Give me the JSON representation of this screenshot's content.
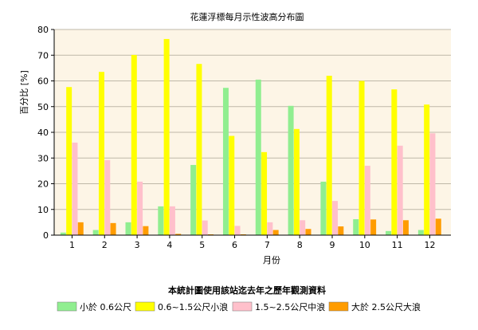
{
  "chart_data": {
    "type": "bar",
    "title": "花蓮浮標每月示性波高分布圖",
    "xlabel": "月份",
    "ylabel": "百分比 [%]",
    "ylim": [
      0,
      80
    ],
    "yticks": [
      0,
      10,
      20,
      30,
      40,
      50,
      60,
      70,
      80
    ],
    "categories": [
      "1",
      "2",
      "3",
      "4",
      "5",
      "6",
      "7",
      "8",
      "9",
      "10",
      "11",
      "12"
    ],
    "series": [
      {
        "name": "小於 0.6公尺",
        "color": "#90ee90",
        "values": [
          1.0,
          2.0,
          5.0,
          11.2,
          27.3,
          57.3,
          60.5,
          50.3,
          20.8,
          6.2,
          1.6,
          2.0
        ]
      },
      {
        "name": "0.6~1.5公尺小浪",
        "color": "#ffff00",
        "values": [
          57.6,
          63.5,
          70.1,
          76.3,
          66.6,
          38.6,
          32.3,
          41.3,
          62.0,
          60.0,
          56.7,
          50.8
        ]
      },
      {
        "name": "1.5~2.5公尺中浪",
        "color": "#ffc0cb",
        "values": [
          36.0,
          29.2,
          20.8,
          11.2,
          5.7,
          3.6,
          5.0,
          5.8,
          13.3,
          27.0,
          34.8,
          39.6
        ]
      },
      {
        "name": "大於 2.5公尺大浪",
        "color": "#ff9c00",
        "values": [
          5.0,
          4.7,
          3.5,
          0.5,
          0.3,
          0.3,
          2.0,
          2.4,
          3.4,
          6.1,
          5.8,
          6.4
        ]
      }
    ],
    "footnote": "本統計圖使用該站迄去年之歷年觀測資料",
    "legend_position": "bottom",
    "plot_background": "#fdf5e6",
    "grid": true
  }
}
